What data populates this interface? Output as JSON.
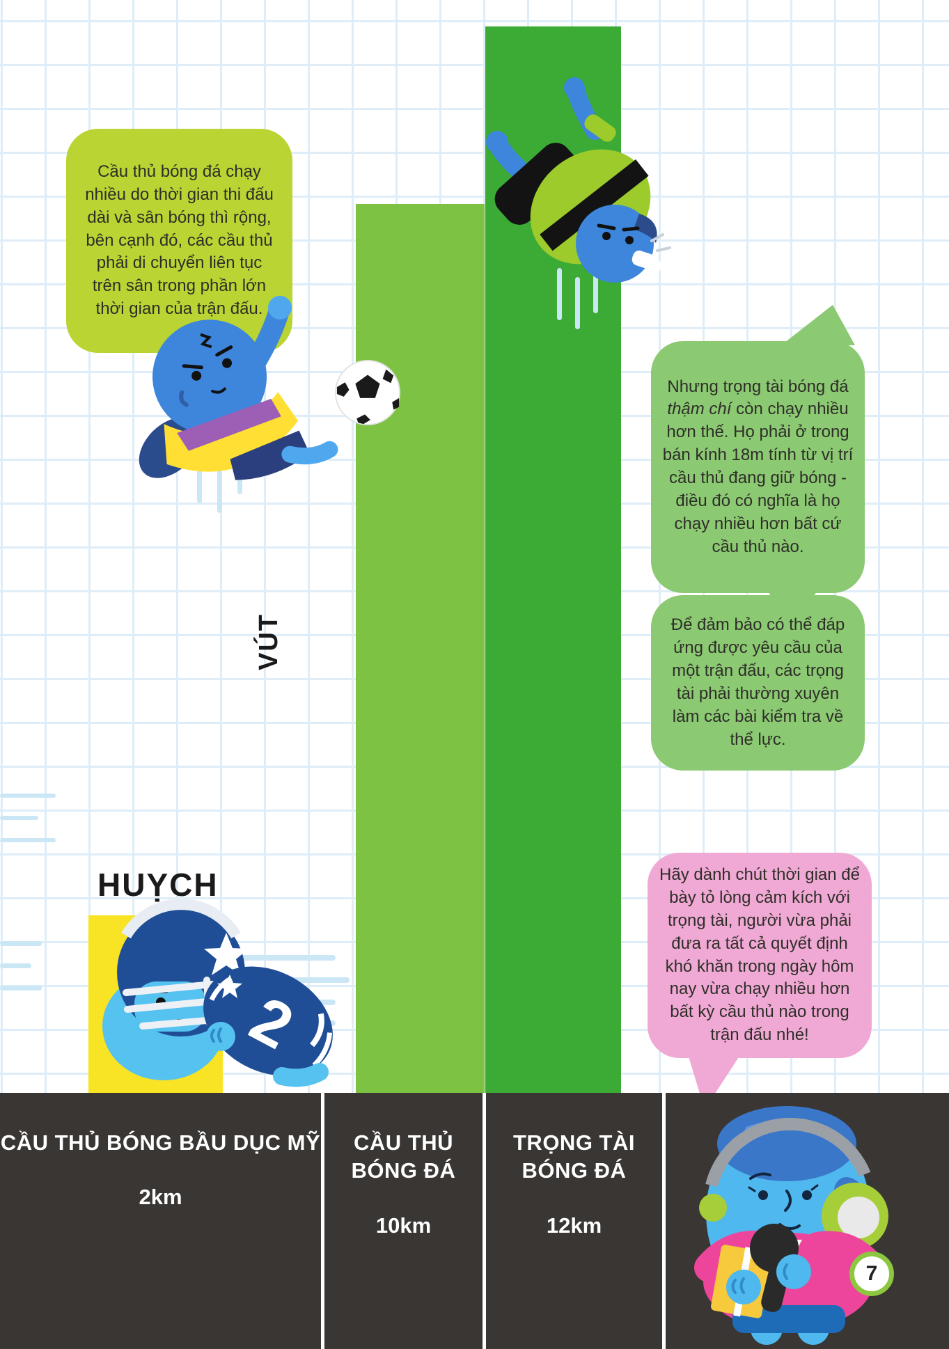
{
  "page": {
    "number": "7"
  },
  "sound_effects": {
    "vut": "VÚT",
    "huych": "HUỴCH"
  },
  "bubbles": {
    "soccer_player": {
      "text": "Cầu thủ bóng đá chạy nhiều do thời gian thi đấu dài và sân bóng thì rộng, bên cạnh đó, các cầu thủ phải di chuyển liên tục trên sân trong phần lớn thời gian của trận đấu."
    },
    "referee_1": {
      "pre": "Nhưng trọng tài bóng đá ",
      "italic": "thậm chí",
      "post": " còn chạy nhiều hơn thế. Họ phải ở trong bán kính 18m tính từ vị trí cầu thủ đang giữ bóng - điều đó có nghĩa là họ chạy nhiều hơn bất cứ cầu thủ nào."
    },
    "referee_2": {
      "text": "Để đảm bảo có thể đáp ứng được yêu cầu của một trận đấu, các trọng tài phải thường xuyên làm các bài kiểm tra về thể lực."
    },
    "reporter": {
      "text": "Hãy dành chút thời gian để bày tỏ lòng cảm kích với trọng tài, người vừa phải đưa ra tất cả quyết định khó khăn trong ngày hôm nay vừa chạy nhiều hơn bất kỳ cầu thủ nào trong trận đấu nhé!"
    }
  },
  "footer": {
    "columns": [
      {
        "label": "CẦU THỦ BÓNG BẦU DỤC MỸ",
        "value": "2km"
      },
      {
        "label": "CẦU THỦ BÓNG ĐÁ",
        "value": "10km"
      },
      {
        "label": "TRỌNG TÀI BÓNG ĐÁ",
        "value": "12km"
      }
    ]
  },
  "characters": {
    "football_number": "2"
  },
  "colors": {
    "bar_rugby": "#F8E424",
    "bar_soccer": "#7DC242",
    "bar_referee": "#3BAB36",
    "bubble_lime": "#B9D433",
    "bubble_green": "#8CC973",
    "bubble_pink": "#F0A9D4",
    "footer_bg": "#393634",
    "page_badge_ring": "#8DC63F",
    "grid_line": "#DEEDF8"
  },
  "chart_data": {
    "type": "bar",
    "categories": [
      "CẦU THỦ BÓNG BẦU DỤC MỸ",
      "CẦU THỦ BÓNG ĐÁ",
      "TRỌNG TÀI BÓNG ĐÁ"
    ],
    "values": [
      2,
      10,
      12
    ],
    "unit": "km",
    "value_labels": [
      "2km",
      "10km",
      "12km"
    ],
    "bar_colors": [
      "#F8E424",
      "#7DC242",
      "#3BAB36"
    ],
    "title": "",
    "xlabel": "",
    "ylabel": "",
    "ylim": [
      0,
      12
    ],
    "orientation": "vertical",
    "grid": true,
    "legend": false
  }
}
